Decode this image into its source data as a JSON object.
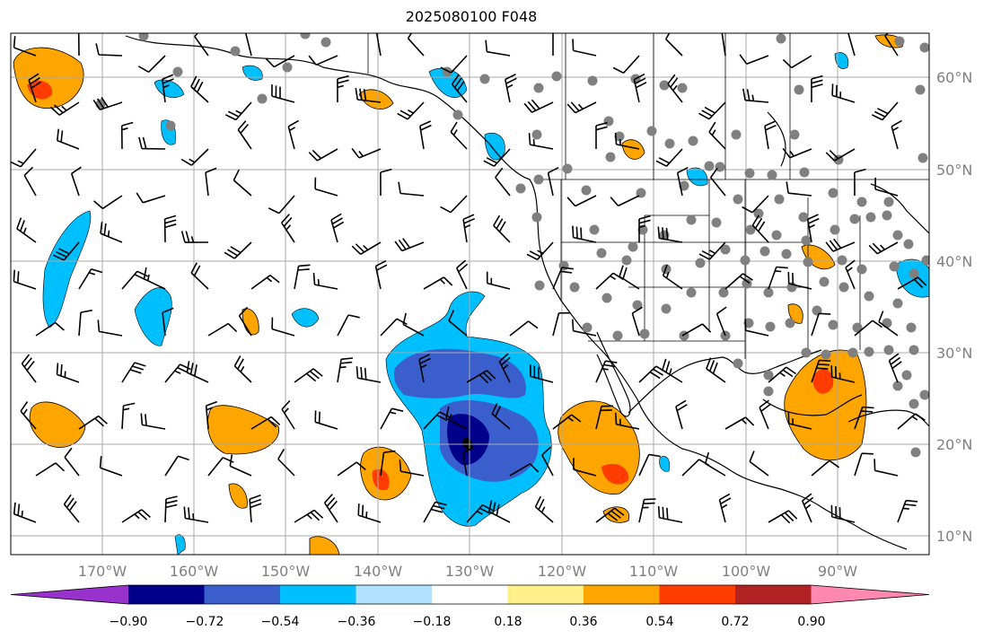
{
  "title": "2025080100 F048",
  "lat_labels": [
    "60°N",
    "50°N",
    "40°N",
    "30°N",
    "20°N",
    "10°N"
  ],
  "lon_labels": [
    "170°W",
    "160°W",
    "150°W",
    "140°W",
    "130°W",
    "120°W",
    "110°W",
    "100°W",
    "90°W"
  ],
  "colorbar": {
    "ticks": [
      "−0.90",
      "−0.72",
      "−0.54",
      "−0.36",
      "−0.18",
      "0.18",
      "0.36",
      "0.54",
      "0.72",
      "0.90"
    ],
    "colors": [
      "#9932cc",
      "#00008b",
      "#3a5fcd",
      "#00bfff",
      "#b0e2ff",
      "#ffffff",
      "#fff08a",
      "#ffa500",
      "#ff3c00",
      "#b22222",
      "#ff88b0"
    ]
  },
  "colors": {
    "grid": "#a9a9a9",
    "coast": "#000000",
    "station": "#808080",
    "barb": "#000000"
  }
}
